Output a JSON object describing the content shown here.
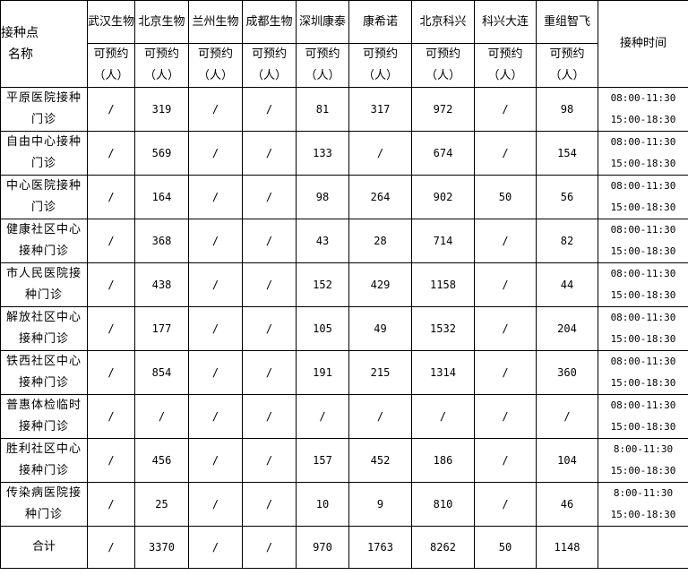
{
  "header": {
    "site_label_line1": "接种点",
    "site_label_line2": "名称",
    "time_label": "接种时间",
    "available_line1": "可预约",
    "available_line2": "（人）",
    "vaccines": [
      "武汉生物",
      "北京生物",
      "兰州生物",
      "成都生物",
      "深圳康泰",
      "康希诺",
      "北京科兴",
      "科兴大连",
      "重组智飞"
    ]
  },
  "rows": [
    {
      "name": "平原医院接种门诊",
      "values": [
        "/",
        "319",
        "/",
        "/",
        "81",
        "317",
        "972",
        "/",
        "98"
      ],
      "time1": "08:00-11:30",
      "time2": "15:00-18:30"
    },
    {
      "name": "自由中心接种门诊",
      "values": [
        "/",
        "569",
        "/",
        "/",
        "133",
        "/",
        "674",
        "/",
        "154"
      ],
      "time1": "08:00-11:30",
      "time2": "15:00-18:30"
    },
    {
      "name": "中心医院接种门诊",
      "values": [
        "/",
        "164",
        "/",
        "/",
        "98",
        "264",
        "902",
        "50",
        "56"
      ],
      "time1": "08:00-11:30",
      "time2": "15:00-18:30"
    },
    {
      "name": "健康社区中心接种门诊",
      "values": [
        "/",
        "368",
        "/",
        "/",
        "43",
        "28",
        "714",
        "/",
        "82"
      ],
      "time1": "08:00-11:30",
      "time2": "15:00-18:30"
    },
    {
      "name": "市人民医院接种门诊",
      "values": [
        "/",
        "438",
        "/",
        "/",
        "152",
        "429",
        "1158",
        "/",
        "44"
      ],
      "time1": "08:00-11:30",
      "time2": "15:00-18:30"
    },
    {
      "name": "解放社区中心接种门诊",
      "values": [
        "/",
        "177",
        "/",
        "/",
        "105",
        "49",
        "1532",
        "/",
        "204"
      ],
      "time1": "08:00-11:30",
      "time2": "15:00-18:30"
    },
    {
      "name": "铁西社区中心接种门诊",
      "values": [
        "/",
        "854",
        "/",
        "/",
        "191",
        "215",
        "1314",
        "/",
        "360"
      ],
      "time1": "08:00-11:30",
      "time2": "15:00-18:30"
    },
    {
      "name": "普惠体检临时接种门诊",
      "values": [
        "/",
        "/",
        "/",
        "/",
        "/",
        "/",
        "/",
        "/",
        "/"
      ],
      "time1": "08:00-11:30",
      "time2": "15:00-18:30"
    },
    {
      "name": "胜利社区中心接种门诊",
      "values": [
        "/",
        "456",
        "/",
        "/",
        "157",
        "452",
        "186",
        "/",
        "104"
      ],
      "time1": "8:00-11:30",
      "time2": "15:00-18:30"
    },
    {
      "name": "传染病医院接种门诊",
      "values": [
        "/",
        "25",
        "/",
        "/",
        "10",
        "9",
        "810",
        "/",
        "46"
      ],
      "time1": "8:00-11:30",
      "time2": "15:00-18:30"
    }
  ],
  "total": {
    "label": "合计",
    "values": [
      "/",
      "3370",
      "/",
      "/",
      "970",
      "1763",
      "8262",
      "50",
      "1148"
    ]
  }
}
